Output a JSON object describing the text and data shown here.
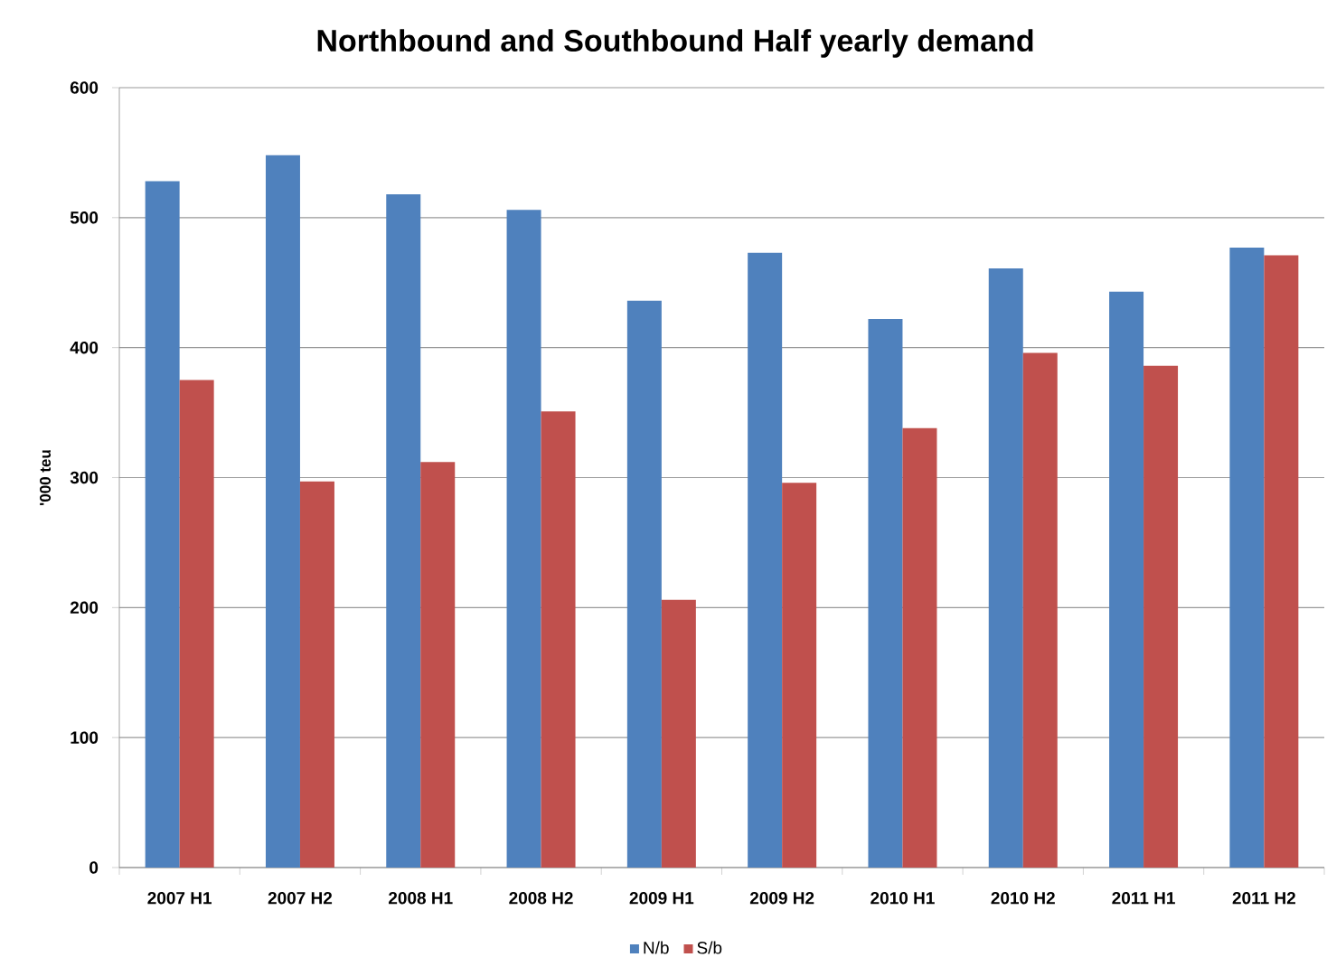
{
  "chart_data": {
    "type": "bar",
    "title": "Northbound and Southbound Half yearly demand",
    "ylabel": "'000 teu",
    "categories": [
      "2007 H1",
      "2007 H2",
      "2008 H1",
      "2008 H2",
      "2009 H1",
      "2009 H2",
      "2010 H1",
      "2010 H2",
      "2011 H1",
      "2011 H2"
    ],
    "series": [
      {
        "name": "N/b",
        "color": "#4f81bd",
        "values": [
          528,
          548,
          518,
          506,
          436,
          473,
          422,
          461,
          443,
          477
        ]
      },
      {
        "name": "S/b",
        "color": "#c0504d",
        "values": [
          375,
          297,
          312,
          351,
          206,
          296,
          338,
          396,
          386,
          471
        ]
      }
    ],
    "ylim": [
      0,
      600
    ],
    "yticks": [
      0,
      100,
      200,
      300,
      400,
      500,
      600
    ],
    "grid": "y",
    "legend": "bottom"
  }
}
